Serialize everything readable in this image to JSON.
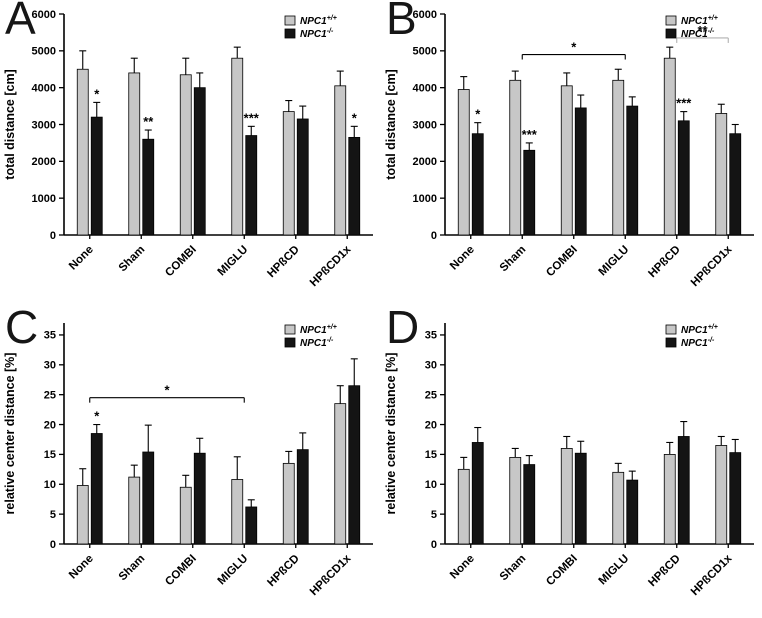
{
  "style": {
    "series1_color": "#c7c7c7",
    "series2_color": "#141414",
    "axis_color": "#000000",
    "gray_bracket_color": "#b0b0b0",
    "background": "#ffffff"
  },
  "legend": {
    "series1_base": "NPC1",
    "series1_sup": "+/+",
    "series2_base": "NPC1",
    "series2_sup": "-/-"
  },
  "chart_data": [
    {
      "type": "bar",
      "panel": "A",
      "ylabel": "total distance [cm]",
      "xlabel": "",
      "ylim": [
        0,
        6000
      ],
      "yticks": [
        0,
        1000,
        2000,
        3000,
        4000,
        5000,
        6000
      ],
      "legend_position": "top-right",
      "categories": [
        "None",
        "Sham",
        "COMBI",
        "MIGLU",
        "HPßCD",
        "HPßCD1x"
      ],
      "series": [
        {
          "name": "NPC1+/+",
          "values": [
            4500,
            4400,
            4350,
            4800,
            3350,
            4050
          ],
          "errors": [
            500,
            400,
            450,
            300,
            300,
            400
          ]
        },
        {
          "name": "NPC1-/-",
          "values": [
            3200,
            2600,
            4000,
            2700,
            3150,
            2650
          ],
          "errors": [
            400,
            250,
            400,
            250,
            350,
            300
          ]
        }
      ],
      "significance": [
        {
          "group": 0,
          "series": 1,
          "label": "*"
        },
        {
          "group": 1,
          "series": 1,
          "label": "**"
        },
        {
          "group": 3,
          "series": 1,
          "label": "***"
        },
        {
          "group": 5,
          "series": 1,
          "label": "*"
        }
      ],
      "brackets": []
    },
    {
      "type": "bar",
      "panel": "B",
      "ylabel": "total distance [cm]",
      "xlabel": "",
      "ylim": [
        0,
        6000
      ],
      "yticks": [
        0,
        1000,
        2000,
        3000,
        4000,
        5000,
        6000
      ],
      "legend_position": "top-right",
      "categories": [
        "None",
        "Sham",
        "COMBI",
        "MIGLU",
        "HPßCD",
        "HPßCD1x"
      ],
      "series": [
        {
          "name": "NPC1+/+",
          "values": [
            3950,
            4200,
            4050,
            4200,
            4800,
            3300
          ],
          "errors": [
            350,
            250,
            350,
            300,
            300,
            250
          ]
        },
        {
          "name": "NPC1-/-",
          "values": [
            2750,
            2300,
            3450,
            3500,
            3100,
            2750
          ],
          "errors": [
            300,
            200,
            350,
            250,
            250,
            250
          ]
        }
      ],
      "significance": [
        {
          "group": 0,
          "series": 1,
          "label": "*"
        },
        {
          "group": 1,
          "series": 1,
          "label": "***"
        },
        {
          "group": 4,
          "series": 1,
          "label": "***"
        }
      ],
      "brackets": [
        {
          "from": 1,
          "to": 3,
          "y": 4900,
          "label": "*",
          "color": "#000000"
        },
        {
          "from": 4,
          "to": 5,
          "y": 5350,
          "label": "**",
          "color": "#b0b0b0"
        }
      ]
    },
    {
      "type": "bar",
      "panel": "C",
      "ylabel": "relative center distance [%]",
      "xlabel": "",
      "ylim": [
        0,
        37
      ],
      "yticks": [
        0,
        5,
        10,
        15,
        20,
        25,
        30,
        35
      ],
      "legend_position": "top-right",
      "categories": [
        "None",
        "Sham",
        "COMBI",
        "MIGLU",
        "HPßCD",
        "HPßCD1x"
      ],
      "series": [
        {
          "name": "NPC1+/+",
          "values": [
            9.8,
            11.2,
            9.5,
            10.8,
            13.5,
            23.5
          ],
          "errors": [
            2.8,
            2.0,
            2.0,
            3.8,
            2.0,
            3.0
          ]
        },
        {
          "name": "NPC1-/-",
          "values": [
            18.5,
            15.4,
            15.2,
            6.2,
            15.8,
            26.5
          ],
          "errors": [
            1.5,
            4.5,
            2.5,
            1.2,
            2.8,
            4.5
          ]
        }
      ],
      "significance": [
        {
          "group": 0,
          "series": 1,
          "label": "*"
        }
      ],
      "brackets": [
        {
          "from": 0,
          "to": 3,
          "y": 24.5,
          "label": "*",
          "color": "#000000"
        }
      ]
    },
    {
      "type": "bar",
      "panel": "D",
      "ylabel": "relative center distance [%]",
      "xlabel": "",
      "ylim": [
        0,
        37
      ],
      "yticks": [
        0,
        5,
        10,
        15,
        20,
        25,
        30,
        35
      ],
      "legend_position": "top-right",
      "categories": [
        "None",
        "Sham",
        "COMBI",
        "MIGLU",
        "HPßCD",
        "HPßCD1x"
      ],
      "series": [
        {
          "name": "NPC1+/+",
          "values": [
            12.5,
            14.5,
            16.0,
            12.0,
            15.0,
            16.5
          ],
          "errors": [
            2.0,
            1.5,
            2.0,
            1.5,
            2.0,
            1.5
          ]
        },
        {
          "name": "NPC1-/-",
          "values": [
            17.0,
            13.3,
            15.2,
            10.7,
            18.0,
            15.3
          ],
          "errors": [
            2.5,
            1.5,
            2.0,
            1.5,
            2.5,
            2.2
          ]
        }
      ],
      "significance": [],
      "brackets": []
    }
  ]
}
